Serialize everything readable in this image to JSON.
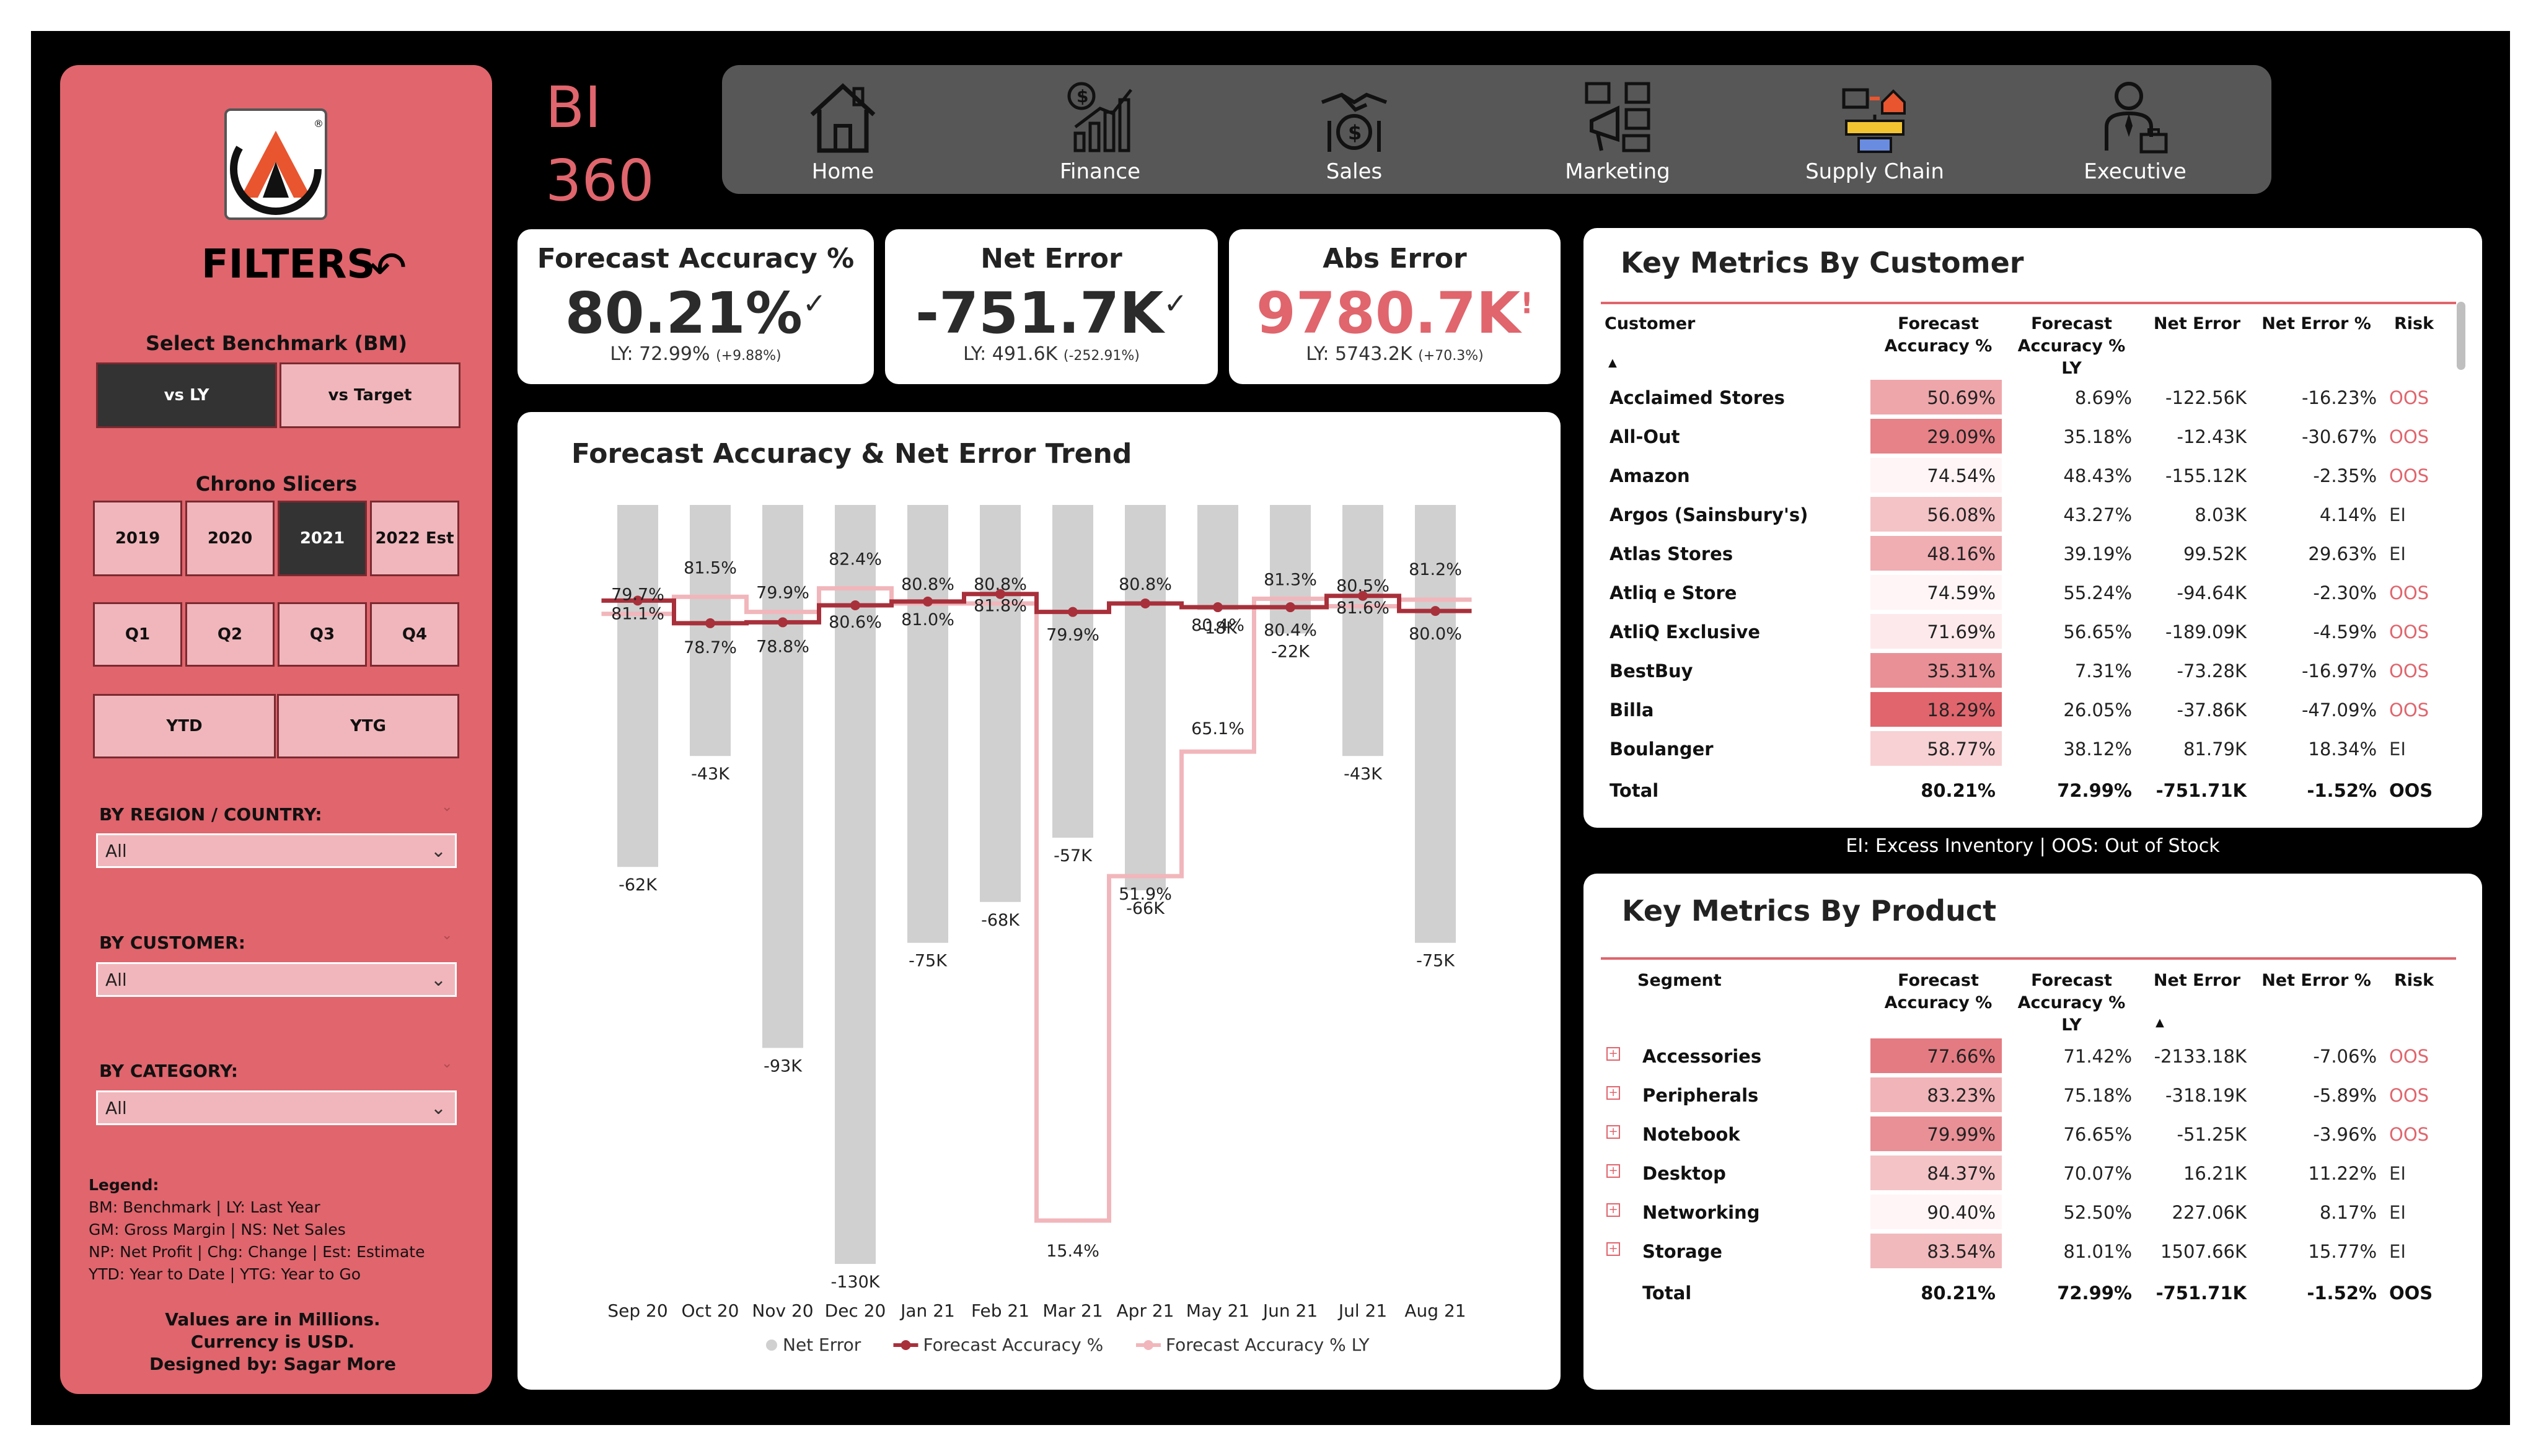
{
  "app": {
    "title_line1": "BI",
    "title_line2": "360"
  },
  "nav": [
    {
      "label": "Home",
      "icon": "home-icon"
    },
    {
      "label": "Finance",
      "icon": "finance-chart-icon"
    },
    {
      "label": "Sales",
      "icon": "sales-handshake-icon"
    },
    {
      "label": "Marketing",
      "icon": "marketing-megaphone-icon"
    },
    {
      "label": "Supply Chain",
      "icon": "supply-chain-icon"
    },
    {
      "label": "Executive",
      "icon": "executive-person-icon"
    }
  ],
  "sidebar": {
    "title": "FILTERS",
    "benchmark": {
      "label": "Select Benchmark (BM)",
      "options": [
        "vs LY",
        "vs Target"
      ],
      "selected": "vs LY"
    },
    "chrono": {
      "label": "Chrono Slicers",
      "years": [
        "2019",
        "2020",
        "2021",
        "2022 Est"
      ],
      "selected_year": "2021",
      "quarters": [
        "Q1",
        "Q2",
        "Q3",
        "Q4"
      ],
      "periods": [
        "YTD",
        "YTG"
      ]
    },
    "dropdowns": [
      {
        "label": "BY REGION / COUNTRY:",
        "value": "All"
      },
      {
        "label": "BY CUSTOMER:",
        "value": "All"
      },
      {
        "label": "BY CATEGORY:",
        "value": "All"
      }
    ],
    "legend": {
      "heading": "Legend:",
      "lines": [
        "BM: Benchmark | LY: Last Year",
        "GM: Gross Margin | NS: Net Sales",
        "NP: Net Profit | Chg: Change | Est: Estimate",
        "YTD: Year to Date | YTG: Year to Go"
      ]
    },
    "footnote": [
      "Values are in Millions.",
      "Currency is USD.",
      "Designed by: Sagar More"
    ]
  },
  "kpis": [
    {
      "title": "Forecast Accuracy %",
      "value": "80.21%",
      "mark": "✓",
      "sub": "LY: 72.99%",
      "delta": "(+9.88%)"
    },
    {
      "title": "Net Error",
      "value": "-751.7K",
      "mark": "✓",
      "sub": "LY: 491.6K",
      "delta": "(-252.91%)"
    },
    {
      "title": "Abs Error",
      "value": "9780.7K",
      "mark": "!",
      "sub": "LY: 5743.2K",
      "delta": "(+70.3%)"
    }
  ],
  "chart_data": {
    "type": "bar",
    "title": "Forecast Accuracy & Net Error Trend",
    "categories": [
      "Sep 20",
      "Oct 20",
      "Nov 20",
      "Dec 20",
      "Jan 21",
      "Feb 21",
      "Mar 21",
      "Apr 21",
      "May 21",
      "Jun 21",
      "Jul 21",
      "Aug 21"
    ],
    "series": [
      {
        "name": "Net Error",
        "kind": "bar",
        "values": [
          -62,
          -43,
          -93,
          -130,
          -75,
          -68,
          -57,
          -66,
          -18,
          -22,
          -43,
          -75
        ],
        "labels": [
          "-62K",
          "-43K",
          "-93K",
          "-130K",
          "-75K",
          "-68K",
          "-57K",
          "-66K",
          "-18K",
          "-22K",
          "-43K",
          "-75K"
        ],
        "color": "#d0d0d0"
      },
      {
        "name": "Forecast Accuracy %",
        "kind": "step-line",
        "values": [
          81.1,
          78.7,
          78.8,
          80.6,
          81.0,
          81.8,
          79.9,
          80.8,
          80.4,
          80.4,
          81.6,
          80.0
        ],
        "color": "#a8303b"
      },
      {
        "name": "Forecast Accuracy % LY",
        "kind": "step-line",
        "values": [
          79.7,
          81.5,
          79.9,
          82.4,
          80.8,
          80.8,
          15.4,
          51.9,
          65.1,
          81.3,
          80.5,
          81.2
        ],
        "color": "#f1b6bb"
      }
    ],
    "legend_position": "bottom"
  },
  "customer_table": {
    "title": "Key Metrics By Customer",
    "headers": [
      [
        "Customer"
      ],
      [
        "Forecast",
        "Accuracy %"
      ],
      [
        "Forecast",
        "Accuracy % LY"
      ],
      [
        "Net Error"
      ],
      [
        "Net Error %"
      ],
      [
        "Risk"
      ]
    ],
    "rows": [
      {
        "name": "Acclaimed Stores",
        "fa": "50.69%",
        "fa_ly": "8.69%",
        "ne": "-122.56K",
        "nep": "-16.23%",
        "risk": "OOS",
        "heat": 0.55
      },
      {
        "name": "All-Out",
        "fa": "29.09%",
        "fa_ly": "35.18%",
        "ne": "-12.43K",
        "nep": "-30.67%",
        "risk": "OOS",
        "heat": 0.8
      },
      {
        "name": "Amazon",
        "fa": "74.54%",
        "fa_ly": "48.43%",
        "ne": "-155.12K",
        "nep": "-2.35%",
        "risk": "OOS",
        "heat": 0.0
      },
      {
        "name": "Argos (Sainsbury's)",
        "fa": "56.08%",
        "fa_ly": "43.27%",
        "ne": "8.03K",
        "nep": "4.14%",
        "risk": "EI",
        "heat": 0.35
      },
      {
        "name": "Atlas Stores",
        "fa": "48.16%",
        "fa_ly": "39.19%",
        "ne": "99.52K",
        "nep": "29.63%",
        "risk": "EI",
        "heat": 0.5
      },
      {
        "name": "Atliq e Store",
        "fa": "74.59%",
        "fa_ly": "55.24%",
        "ne": "-94.64K",
        "nep": "-2.30%",
        "risk": "OOS",
        "heat": 0.0
      },
      {
        "name": "AtliQ Exclusive",
        "fa": "71.69%",
        "fa_ly": "56.65%",
        "ne": "-189.09K",
        "nep": "-4.59%",
        "risk": "OOS",
        "heat": 0.08
      },
      {
        "name": "BestBuy",
        "fa": "35.31%",
        "fa_ly": "7.31%",
        "ne": "-73.28K",
        "nep": "-16.97%",
        "risk": "OOS",
        "heat": 0.7
      },
      {
        "name": "Billa",
        "fa": "18.29%",
        "fa_ly": "26.05%",
        "ne": "-37.86K",
        "nep": "-47.09%",
        "risk": "OOS",
        "heat": 1.0
      },
      {
        "name": "Boulanger",
        "fa": "58.77%",
        "fa_ly": "38.12%",
        "ne": "81.79K",
        "nep": "18.34%",
        "risk": "EI",
        "heat": 0.25
      }
    ],
    "total": {
      "name": "Total",
      "fa": "80.21%",
      "fa_ly": "72.99%",
      "ne": "-751.71K",
      "nep": "-1.52%",
      "risk": "OOS"
    }
  },
  "risk_note": "EI: Excess Inventory | OOS: Out of Stock",
  "product_table": {
    "title": "Key Metrics By Product",
    "headers": [
      [
        "Segment"
      ],
      [
        "Forecast",
        "Accuracy %"
      ],
      [
        "Forecast",
        "Accuracy % LY"
      ],
      [
        "Net Error"
      ],
      [
        "Net Error %"
      ],
      [
        "Risk"
      ]
    ],
    "rows": [
      {
        "name": "Accessories",
        "fa": "77.66%",
        "fa_ly": "71.42%",
        "ne": "-2133.18K",
        "nep": "-7.06%",
        "risk": "OOS",
        "heat": 0.85
      },
      {
        "name": "Peripherals",
        "fa": "83.23%",
        "fa_ly": "75.18%",
        "ne": "-318.19K",
        "nep": "-5.89%",
        "risk": "OOS",
        "heat": 0.45
      },
      {
        "name": "Notebook",
        "fa": "79.99%",
        "fa_ly": "76.65%",
        "ne": "-51.25K",
        "nep": "-3.96%",
        "risk": "OOS",
        "heat": 0.7
      },
      {
        "name": "Desktop",
        "fa": "84.37%",
        "fa_ly": "70.07%",
        "ne": "16.21K",
        "nep": "11.22%",
        "risk": "EI",
        "heat": 0.35
      },
      {
        "name": "Networking",
        "fa": "90.40%",
        "fa_ly": "52.50%",
        "ne": "227.06K",
        "nep": "8.17%",
        "risk": "EI",
        "heat": 0.0
      },
      {
        "name": "Storage",
        "fa": "83.54%",
        "fa_ly": "81.01%",
        "ne": "1507.66K",
        "nep": "15.77%",
        "risk": "EI",
        "heat": 0.42
      }
    ],
    "total": {
      "name": "Total",
      "fa": "80.21%",
      "fa_ly": "72.99%",
      "ne": "-751.71K",
      "nep": "-1.52%",
      "risk": "OOS"
    }
  },
  "colors": {
    "accent": "#e0656d",
    "dark_red": "#a8303b",
    "light_pink": "#f1b6bb",
    "bar_grey": "#d0d0d0",
    "nav_bg": "#575757"
  }
}
